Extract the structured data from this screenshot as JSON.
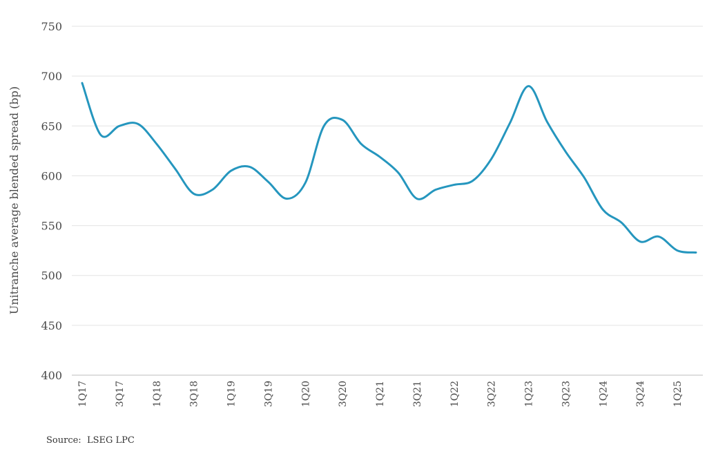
{
  "chart_data": {
    "type": "line",
    "title": "",
    "xlabel": "",
    "ylabel": "Unitranche average blended spread (bp)",
    "ylim": [
      400,
      750
    ],
    "yticks": [
      400,
      450,
      500,
      550,
      600,
      650,
      700,
      750
    ],
    "grid": true,
    "legend": "none",
    "line_color": "#2596be",
    "x_tick_labels": [
      "1Q17",
      "3Q17",
      "1Q18",
      "3Q18",
      "1Q19",
      "3Q19",
      "1Q20",
      "3Q20",
      "1Q21",
      "3Q21",
      "1Q22",
      "3Q22",
      "1Q23",
      "3Q23",
      "1Q24",
      "3Q24",
      "1Q25"
    ],
    "categories": [
      "1Q17",
      "2Q17",
      "3Q17",
      "4Q17",
      "1Q18",
      "2Q18",
      "3Q18",
      "4Q18",
      "1Q19",
      "2Q19",
      "3Q19",
      "4Q19",
      "1Q20",
      "2Q20",
      "3Q20",
      "4Q20",
      "1Q21",
      "2Q21",
      "3Q21",
      "4Q21",
      "1Q22",
      "2Q22",
      "3Q22",
      "4Q22",
      "1Q23",
      "2Q23",
      "3Q23",
      "4Q23",
      "1Q24",
      "2Q24",
      "3Q24",
      "4Q24",
      "1Q25",
      "2Q25"
    ],
    "series": [
      {
        "values": [
          693,
          641,
          650,
          652,
          632,
          607,
          582,
          586,
          605,
          609,
          594,
          577,
          593,
          650,
          656,
          632,
          619,
          603,
          577,
          586,
          591,
          595,
          617,
          653,
          690,
          654,
          624,
          598,
          566,
          553,
          534,
          539,
          525,
          523
        ]
      }
    ]
  },
  "source": "Source:  LSEG LPC"
}
